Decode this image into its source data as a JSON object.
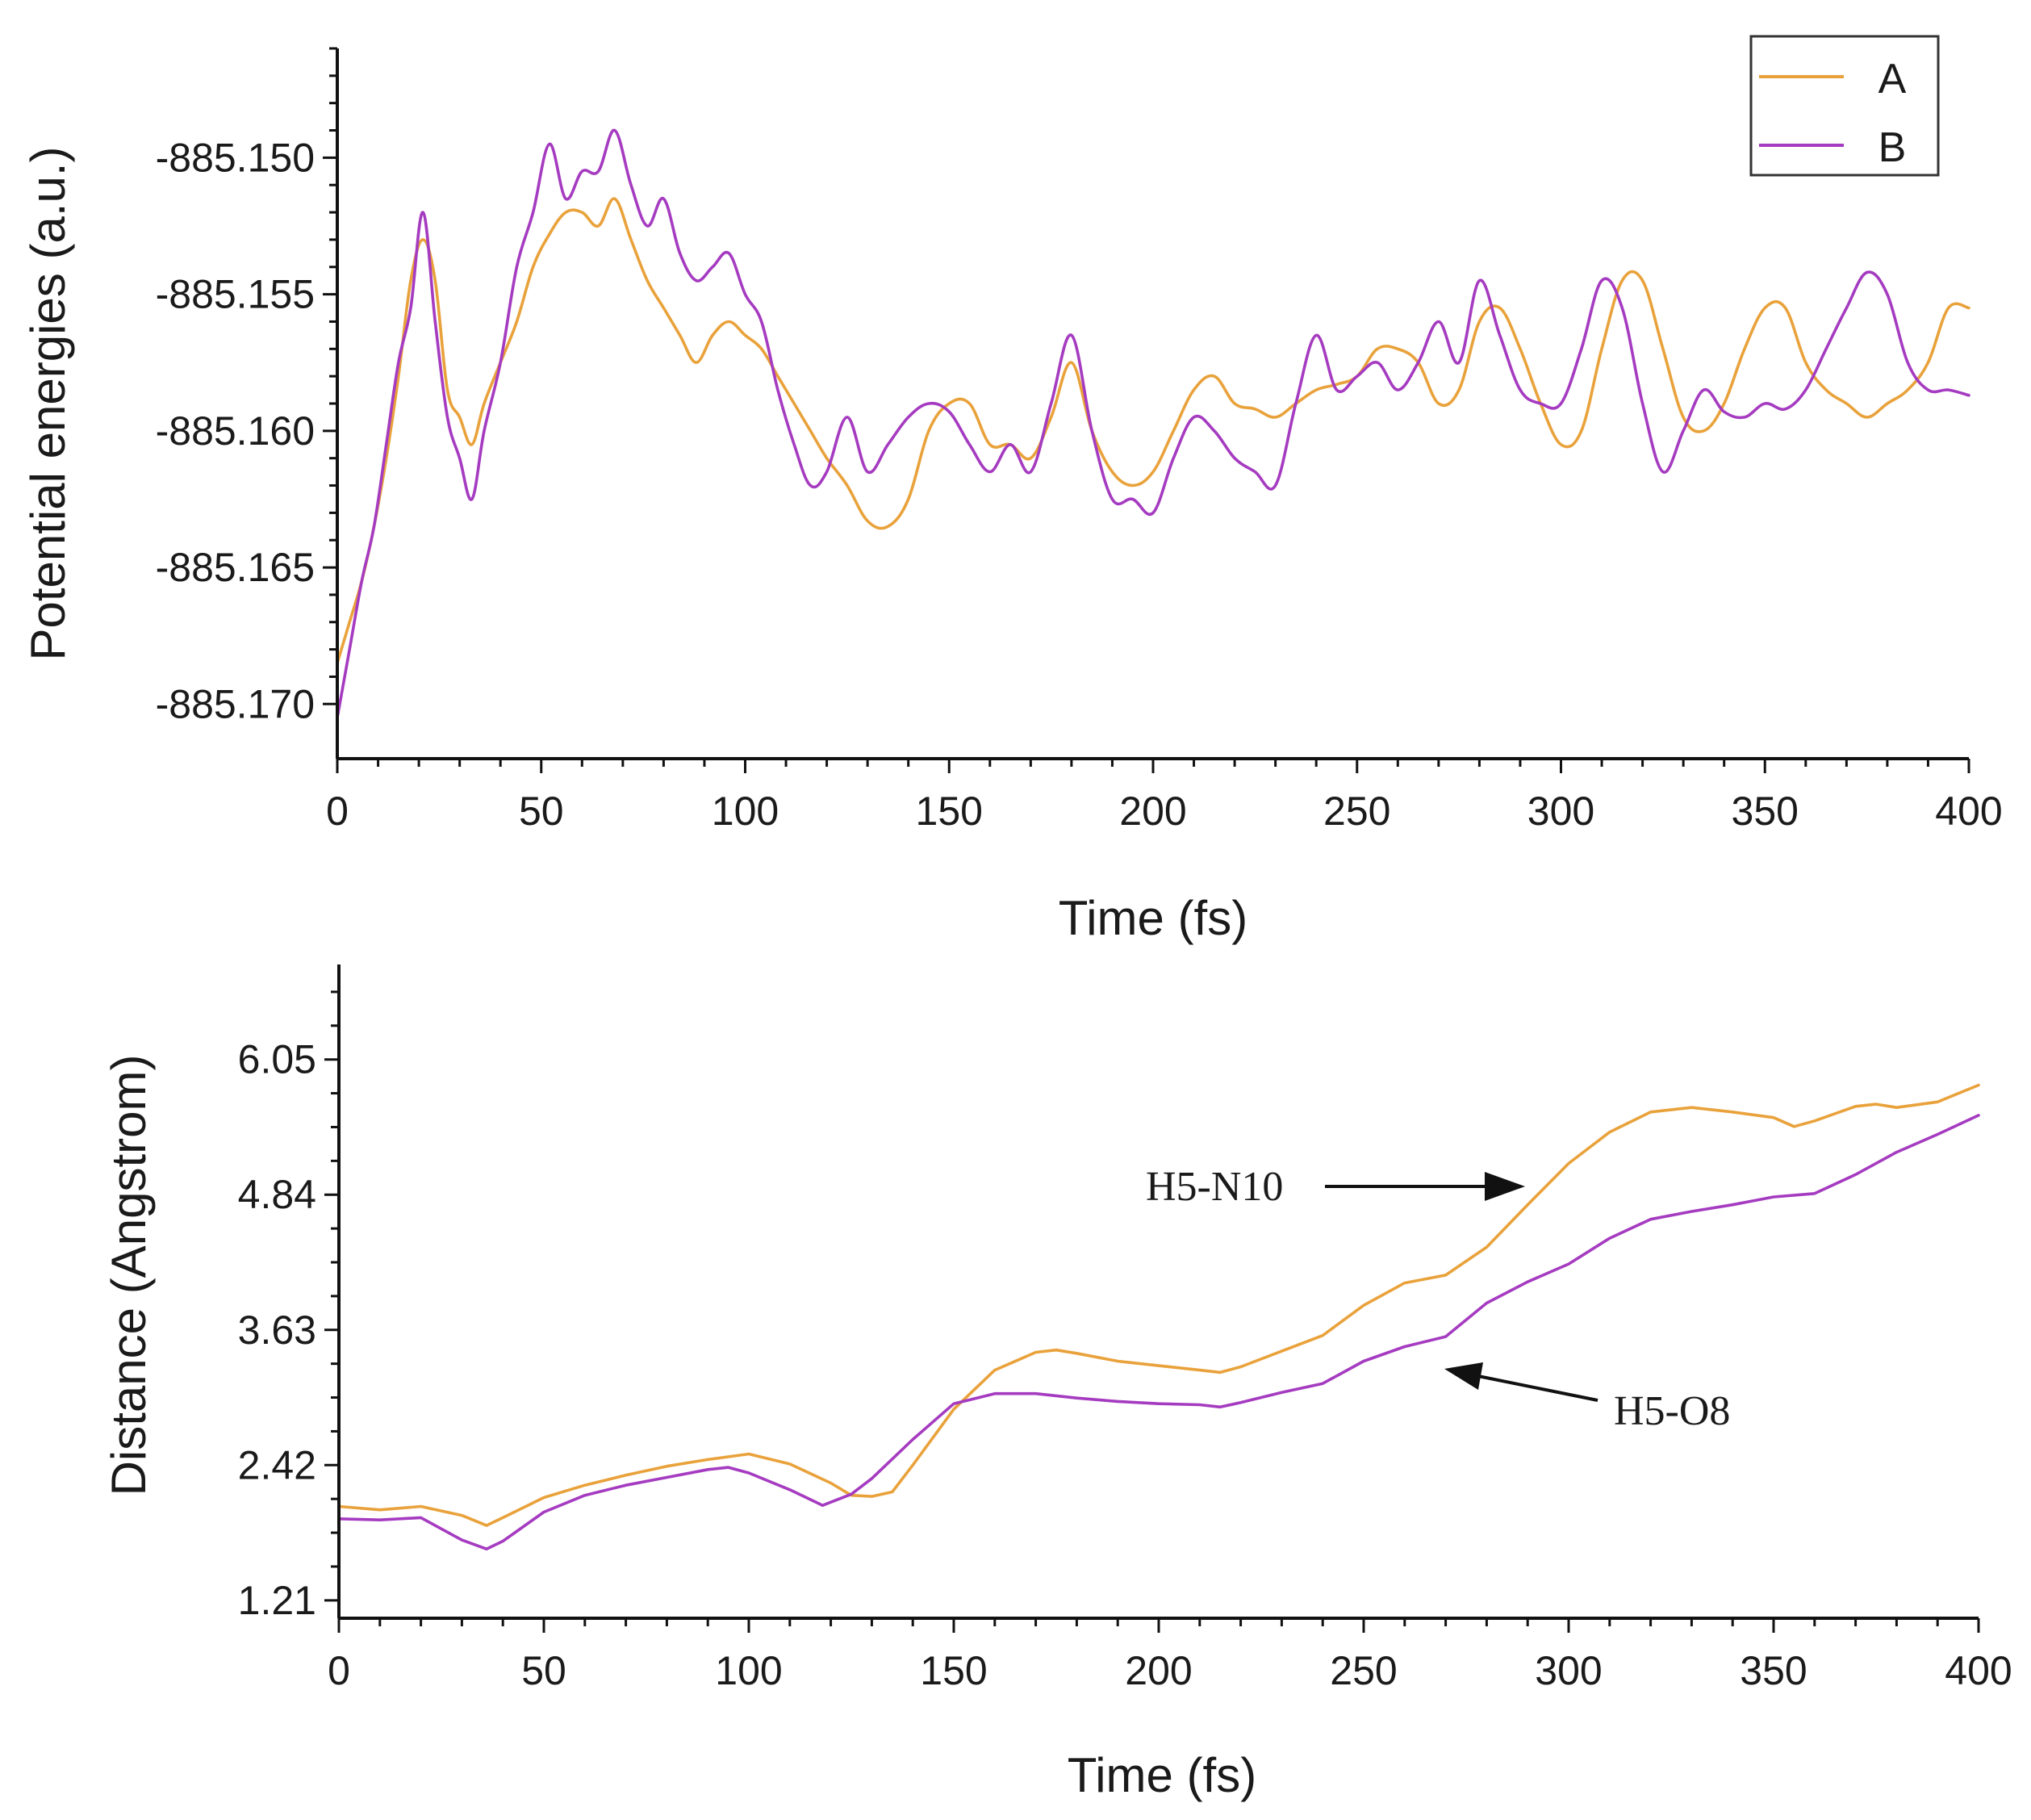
{
  "colors": {
    "A": "#E9A23B",
    "B": "#A53BC0",
    "axis": "#111111"
  },
  "chart_data": [
    {
      "type": "line",
      "title": "",
      "xlabel": "Time (fs)",
      "ylabel": "Potential energies (a.u.)",
      "xlim": [
        0,
        400
      ],
      "ylim": [
        -885.172,
        -885.146
      ],
      "x_ticks": [
        0,
        50,
        100,
        150,
        200,
        250,
        300,
        350,
        400
      ],
      "y_ticks": [
        -885.15,
        -885.155,
        -885.16,
        -885.165,
        -885.17
      ],
      "x_tick_labels": [
        "0",
        "50",
        "100",
        "150",
        "200",
        "250",
        "300",
        "350",
        "400"
      ],
      "y_tick_labels": [
        "-885.150",
        "-885.155",
        "-885.160",
        "-885.165",
        "-885.170"
      ],
      "legend": {
        "position": "top-right",
        "entries": [
          "A",
          "B"
        ]
      },
      "series": [
        {
          "name": "A",
          "color": "#E9A23B",
          "x": [
            0,
            3,
            6,
            9,
            12,
            15,
            18,
            21,
            24,
            27,
            30,
            33,
            36,
            40,
            44,
            48,
            52,
            56,
            60,
            64,
            68,
            72,
            76,
            80,
            84,
            88,
            92,
            96,
            100,
            104,
            108,
            112,
            116,
            120,
            125,
            130,
            135,
            140,
            145,
            150,
            155,
            160,
            165,
            170,
            175,
            180,
            185,
            190,
            195,
            200,
            205,
            210,
            215,
            220,
            225,
            230,
            235,
            240,
            245,
            250,
            255,
            260,
            265,
            270,
            275,
            280,
            285,
            290,
            295,
            300,
            305,
            310,
            315,
            320,
            325,
            330,
            335,
            340,
            345,
            350,
            355,
            360,
            365,
            370,
            375,
            380,
            385,
            390,
            395,
            400
          ],
          "values": [
            -885.1685,
            -885.167,
            -885.1655,
            -885.1635,
            -885.161,
            -885.158,
            -885.1545,
            -885.153,
            -885.1545,
            -885.1585,
            -885.1595,
            -885.1605,
            -885.159,
            -885.1575,
            -885.156,
            -885.154,
            -885.1528,
            -885.152,
            -885.152,
            -885.1525,
            -885.1515,
            -885.153,
            -885.1545,
            -885.1555,
            -885.1565,
            -885.1575,
            -885.1565,
            -885.156,
            -885.1565,
            -885.157,
            -885.158,
            -885.159,
            -885.16,
            -885.161,
            -885.162,
            -885.1633,
            -885.1635,
            -885.1625,
            -885.16,
            -885.159,
            -885.159,
            -885.1605,
            -885.1605,
            -885.161,
            -885.1595,
            -885.1575,
            -885.16,
            -885.1615,
            -885.162,
            -885.1615,
            -885.16,
            -885.1585,
            -885.158,
            -885.159,
            -885.1592,
            -885.1595,
            -885.159,
            -885.1585,
            -885.1583,
            -885.158,
            -885.157,
            -885.157,
            -885.1575,
            -885.159,
            -885.1585,
            -885.156,
            -885.1555,
            -885.157,
            -885.159,
            -885.1605,
            -885.16,
            -885.157,
            -885.1545,
            -885.1545,
            -885.157,
            -885.1595,
            -885.16,
            -885.159,
            -885.157,
            -885.1555,
            -885.1555,
            -885.1575,
            -885.1585,
            -885.159,
            -885.1595,
            -885.159,
            -885.1585,
            -885.1575,
            -885.1555,
            -885.1555
          ]
        },
        {
          "name": "B",
          "color": "#A53BC0",
          "x": [
            0,
            3,
            6,
            9,
            12,
            15,
            18,
            21,
            24,
            27,
            30,
            33,
            36,
            40,
            44,
            48,
            52,
            56,
            60,
            64,
            68,
            72,
            76,
            80,
            84,
            88,
            92,
            96,
            100,
            104,
            108,
            112,
            116,
            120,
            125,
            130,
            135,
            140,
            145,
            150,
            155,
            160,
            165,
            170,
            175,
            180,
            185,
            190,
            195,
            200,
            205,
            210,
            215,
            220,
            225,
            230,
            235,
            240,
            245,
            250,
            255,
            260,
            265,
            270,
            275,
            280,
            285,
            290,
            295,
            300,
            305,
            310,
            315,
            320,
            325,
            330,
            335,
            340,
            345,
            350,
            355,
            360,
            365,
            370,
            375,
            380,
            385,
            390,
            395,
            400
          ],
          "values": [
            -885.1705,
            -885.168,
            -885.1655,
            -885.1635,
            -885.1605,
            -885.1575,
            -885.1555,
            -885.152,
            -885.156,
            -885.1595,
            -885.161,
            -885.1625,
            -885.16,
            -885.1575,
            -885.154,
            -885.152,
            -885.1495,
            -885.1515,
            -885.1505,
            -885.1505,
            -885.149,
            -885.151,
            -885.1525,
            -885.1515,
            -885.1535,
            -885.1545,
            -885.154,
            -885.1535,
            -885.155,
            -885.156,
            -885.1585,
            -885.1605,
            -885.162,
            -885.1615,
            -885.1595,
            -885.1615,
            -885.1605,
            -885.1595,
            -885.159,
            -885.1593,
            -885.1605,
            -885.1615,
            -885.1605,
            -885.1615,
            -885.159,
            -885.1565,
            -885.16,
            -885.1625,
            -885.1625,
            -885.163,
            -885.161,
            -885.1595,
            -885.16,
            -885.161,
            -885.1615,
            -885.162,
            -885.159,
            -885.1565,
            -885.1585,
            -885.158,
            -885.1575,
            -885.1585,
            -885.1575,
            -885.156,
            -885.1575,
            -885.1545,
            -885.1565,
            -885.1585,
            -885.159,
            -885.159,
            -885.157,
            -885.1545,
            -885.1555,
            -885.159,
            -885.1615,
            -885.16,
            -885.1585,
            -885.1593,
            -885.1595,
            -885.159,
            -885.1592,
            -885.1585,
            -885.157,
            -885.1555,
            -885.1542,
            -885.155,
            -885.1575,
            -885.1585,
            -885.1585,
            -885.1587
          ]
        }
      ]
    },
    {
      "type": "line",
      "title": "",
      "xlabel": "Time (fs)",
      "ylabel": "Distance (Angstrom)",
      "xlim": [
        0,
        400
      ],
      "ylim": [
        1.05,
        6.9
      ],
      "x_ticks": [
        0,
        50,
        100,
        150,
        200,
        250,
        300,
        350,
        400
      ],
      "y_ticks": [
        1.21,
        2.42,
        3.63,
        4.84,
        6.05
      ],
      "x_tick_labels": [
        "0",
        "50",
        "100",
        "150",
        "200",
        "250",
        "300",
        "350",
        "400"
      ],
      "y_tick_labels": [
        "1.21",
        "2.42",
        "3.63",
        "4.84",
        "6.05"
      ],
      "annotations": [
        {
          "text": "H5-N10",
          "arrow_to": [
            290,
            4.89
          ]
        },
        {
          "text": "H5-O8",
          "arrow_to": [
            265,
            3.52
          ]
        }
      ],
      "series": [
        {
          "name": "H5-N10",
          "color": "#E9A23B",
          "x": [
            0,
            10,
            20,
            30,
            36,
            40,
            50,
            60,
            70,
            80,
            90,
            100,
            110,
            120,
            125,
            130,
            135,
            140,
            150,
            160,
            170,
            175,
            180,
            190,
            200,
            210,
            215,
            220,
            230,
            240,
            250,
            260,
            270,
            280,
            290,
            300,
            310,
            320,
            330,
            340,
            350,
            355,
            360,
            370,
            375,
            380,
            390,
            400
          ],
          "values": [
            2.05,
            2.02,
            2.05,
            1.97,
            1.88,
            1.95,
            2.13,
            2.24,
            2.33,
            2.41,
            2.47,
            2.52,
            2.43,
            2.26,
            2.15,
            2.14,
            2.18,
            2.42,
            2.92,
            3.27,
            3.43,
            3.45,
            3.42,
            3.35,
            3.31,
            3.27,
            3.25,
            3.3,
            3.44,
            3.58,
            3.85,
            4.05,
            4.12,
            4.37,
            4.75,
            5.12,
            5.4,
            5.58,
            5.62,
            5.58,
            5.53,
            5.45,
            5.5,
            5.63,
            5.65,
            5.62,
            5.67,
            5.82
          ]
        },
        {
          "name": "H5-O8",
          "color": "#A53BC0",
          "x": [
            0,
            10,
            20,
            30,
            36,
            40,
            50,
            60,
            70,
            80,
            90,
            95,
            100,
            110,
            118,
            125,
            130,
            140,
            150,
            160,
            170,
            180,
            190,
            200,
            210,
            215,
            220,
            230,
            240,
            250,
            260,
            270,
            280,
            290,
            300,
            310,
            320,
            330,
            340,
            350,
            360,
            370,
            380,
            390,
            400
          ],
          "values": [
            1.94,
            1.93,
            1.95,
            1.75,
            1.67,
            1.74,
            2.0,
            2.15,
            2.24,
            2.31,
            2.38,
            2.4,
            2.35,
            2.2,
            2.06,
            2.16,
            2.3,
            2.65,
            2.97,
            3.06,
            3.06,
            3.02,
            2.99,
            2.97,
            2.96,
            2.94,
            2.98,
            3.07,
            3.15,
            3.35,
            3.48,
            3.57,
            3.87,
            4.06,
            4.22,
            4.45,
            4.62,
            4.69,
            4.75,
            4.82,
            4.85,
            5.02,
            5.22,
            5.38,
            5.55
          ]
        }
      ]
    }
  ]
}
